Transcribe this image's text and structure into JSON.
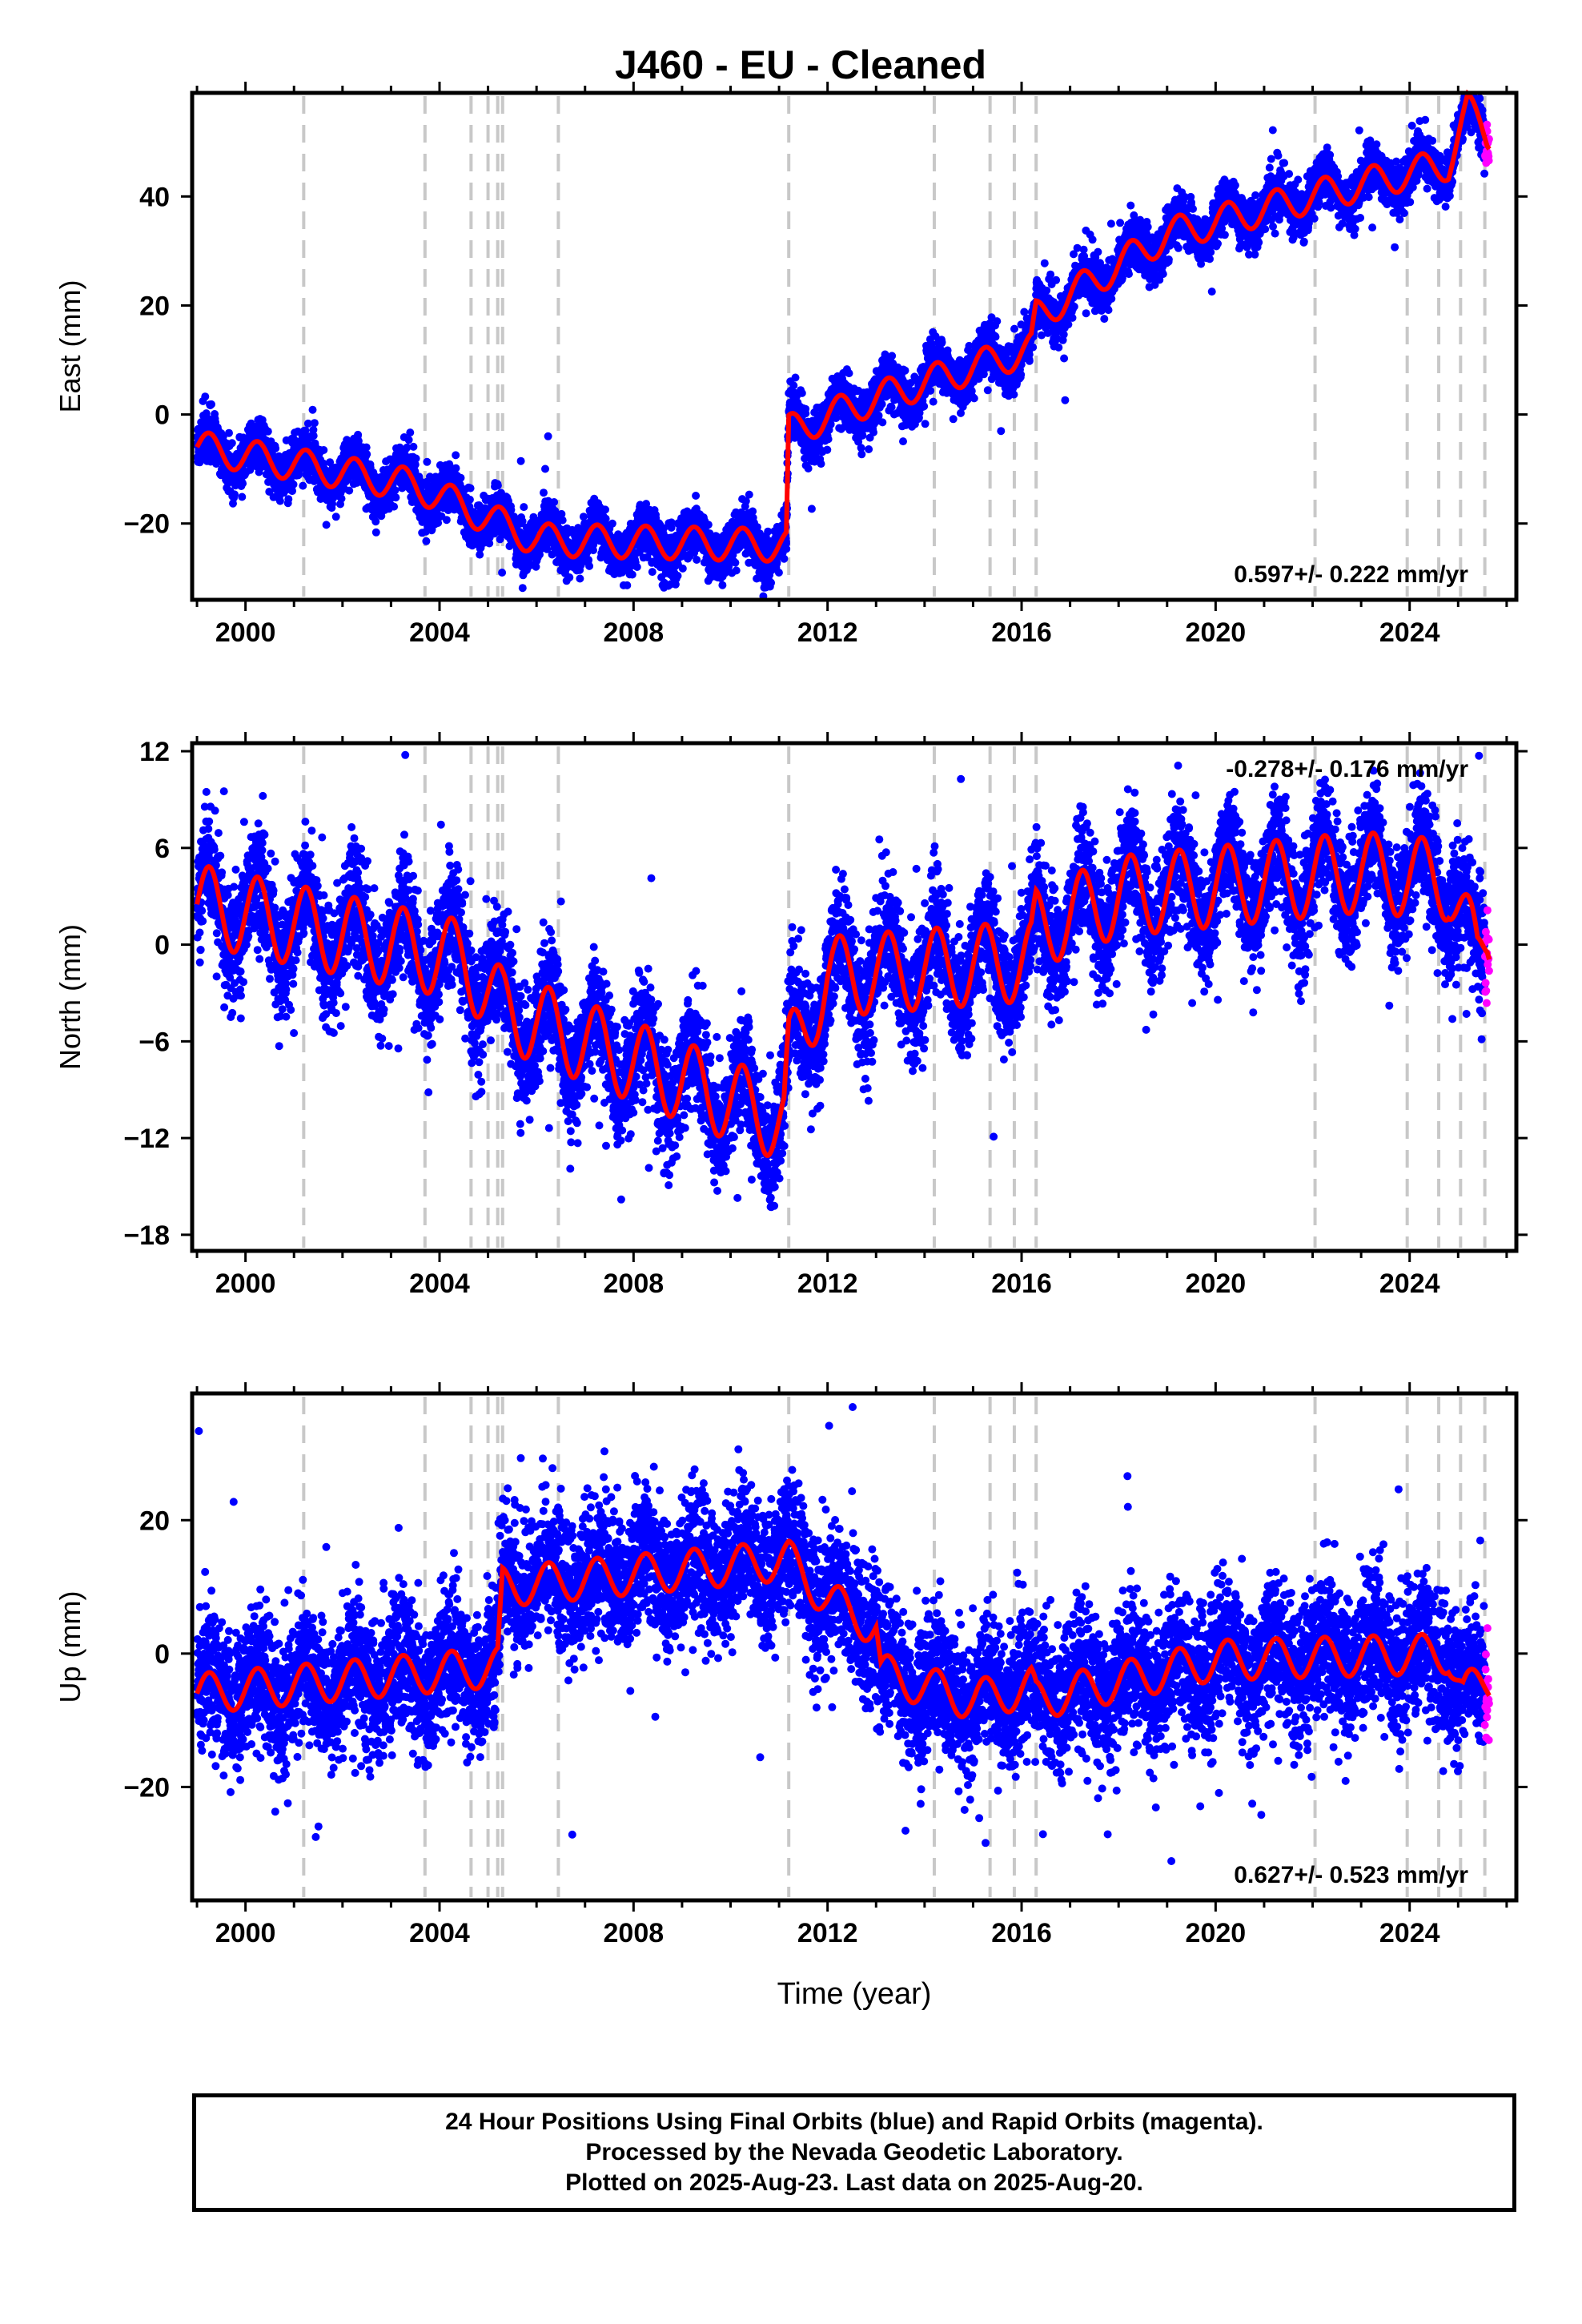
{
  "chart_data": {
    "title": "J460  - EU - Cleaned",
    "type": "scatter",
    "xlabel": "Time (year)",
    "xlim": [
      1998.9,
      2026.2
    ],
    "xticks": [
      "2000",
      "2004",
      "2008",
      "2012",
      "2016",
      "2020",
      "2024"
    ],
    "event_lines": [
      2001.2,
      2003.7,
      2004.65,
      2005.0,
      2005.2,
      2005.3,
      2006.45,
      2011.2,
      2014.2,
      2015.35,
      2015.85,
      2016.3,
      2022.05,
      2023.95,
      2024.6,
      2025.05,
      2025.55
    ],
    "colors": {
      "final_orbits": "#0000ff",
      "rapid_orbits": "#ff00ff",
      "model": "#ff0000",
      "event_lines": "#c8c8c8"
    },
    "panels": [
      {
        "component": "East",
        "ylabel": "East (mm)",
        "ylim": [
          -34,
          59
        ],
        "yticks": [
          -20,
          0,
          20,
          40
        ],
        "ytick_labels": [
          "−20",
          "0",
          "20",
          "40"
        ],
        "rate_label": "0.597+/- 0.222 mm/yr",
        "rate_position": "bottom-right",
        "trend": [
          [
            1999.0,
            -6
          ],
          [
            2003.5,
            -13
          ],
          [
            2006.0,
            -23
          ],
          [
            2011.15,
            -24
          ],
          [
            2011.2,
            -3
          ],
          [
            2013.0,
            3
          ],
          [
            2016.2,
            12
          ],
          [
            2016.3,
            18
          ],
          [
            2019.0,
            33
          ],
          [
            2022.0,
            40
          ],
          [
            2024.8,
            46
          ],
          [
            2025.2,
            56
          ],
          [
            2025.6,
            51
          ]
        ],
        "seasonal_amplitude": 3,
        "scatter_sd": 2.2,
        "offset_events": [
          [
            2001.2,
            -3
          ],
          [
            2003.7,
            -2
          ]
        ]
      },
      {
        "component": "North",
        "ylabel": "North (mm)",
        "ylim": [
          -19,
          12.5
        ],
        "yticks": [
          -18,
          -12,
          -6,
          0,
          6,
          12
        ],
        "ytick_labels": [
          "−18",
          "−12",
          "−6",
          "0",
          "6",
          "12"
        ],
        "rate_label": "-0.278+/- 0.176 mm/yr",
        "rate_position": "top-right",
        "trend": [
          [
            1999.0,
            2.5
          ],
          [
            2004.5,
            -1
          ],
          [
            2005.3,
            -4
          ],
          [
            2011.1,
            -11
          ],
          [
            2011.2,
            -7
          ],
          [
            2012.0,
            -2
          ],
          [
            2016.2,
            -1
          ],
          [
            2016.3,
            1
          ],
          [
            2018.0,
            3
          ],
          [
            2023.0,
            4.5
          ],
          [
            2024.8,
            4
          ],
          [
            2025.4,
            -1
          ],
          [
            2025.6,
            1
          ]
        ],
        "seasonal_amplitude": 2.5,
        "scatter_sd": 1.8,
        "offset_events": [
          [
            2005.3,
            -2
          ]
        ]
      },
      {
        "component": "Up",
        "ylabel": "Up (mm)",
        "ylim": [
          -37,
          39
        ],
        "yticks": [
          -20,
          0,
          20
        ],
        "ytick_labels": [
          "−20",
          "0",
          "20"
        ],
        "rate_label": "0.627+/- 0.523 mm/yr",
        "rate_position": "bottom-right",
        "trend": [
          [
            1999.0,
            -6
          ],
          [
            2005.2,
            -2
          ],
          [
            2005.3,
            10
          ],
          [
            2011.2,
            14
          ],
          [
            2012.0,
            8
          ],
          [
            2013.0,
            4
          ],
          [
            2013.1,
            -3
          ],
          [
            2015.0,
            -7
          ],
          [
            2016.2,
            -5
          ],
          [
            2016.3,
            -7
          ],
          [
            2020.0,
            -1
          ],
          [
            2024.8,
            0
          ],
          [
            2025.1,
            -6
          ],
          [
            2025.6,
            -4
          ]
        ],
        "seasonal_amplitude": 3,
        "scatter_sd": 5,
        "offset_events": []
      }
    ],
    "rapid_orbits_start": 2025.55,
    "last_data": 2025.64
  },
  "footer": {
    "line1": "24 Hour Positions Using Final Orbits (blue) and Rapid Orbits (magenta).",
    "line2": "Processed by the Nevada Geodetic Laboratory.",
    "line3": "Plotted on 2025-Aug-23. Last data on 2025-Aug-20."
  }
}
